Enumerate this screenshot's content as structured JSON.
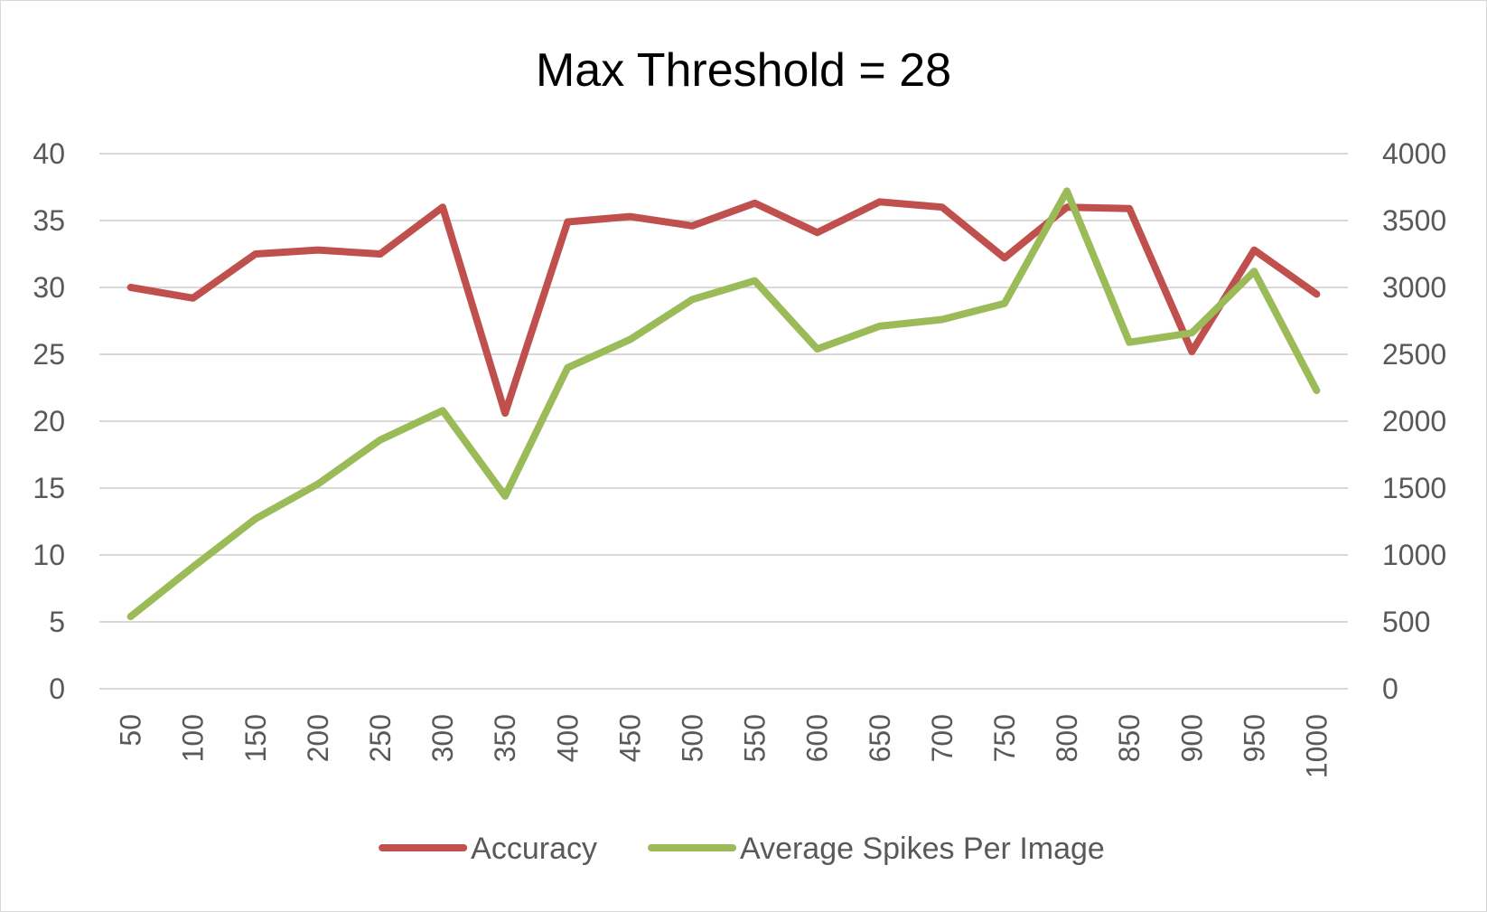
{
  "chart_data": {
    "type": "line",
    "title": "Max Threshold = 28",
    "categories": [
      "50",
      "100",
      "150",
      "200",
      "250",
      "300",
      "350",
      "400",
      "450",
      "500",
      "550",
      "600",
      "650",
      "700",
      "750",
      "800",
      "850",
      "900",
      "950",
      "1000"
    ],
    "y_left": {
      "min": 0,
      "max": 40,
      "ticks": [
        "0",
        "5",
        "10",
        "15",
        "20",
        "25",
        "30",
        "35",
        "40"
      ]
    },
    "y_right": {
      "min": 0,
      "max": 4000,
      "ticks": [
        "0",
        "500",
        "1000",
        "1500",
        "2000",
        "2500",
        "3000",
        "3500",
        "4000"
      ]
    },
    "grid": true,
    "legend_position": "bottom",
    "series": [
      {
        "name": "Accuracy",
        "axis": "left",
        "color": "#c0504d",
        "values": [
          30.0,
          29.2,
          32.5,
          32.8,
          32.5,
          36.0,
          20.6,
          34.9,
          35.3,
          34.6,
          36.3,
          34.1,
          36.4,
          36.0,
          32.2,
          36.0,
          35.9,
          25.2,
          32.8,
          29.5
        ]
      },
      {
        "name": "Average Spikes Per Image",
        "axis": "right",
        "color": "#9bbb59",
        "values": [
          540,
          910,
          1270,
          1530,
          1860,
          2080,
          1440,
          2400,
          2610,
          2910,
          3050,
          2540,
          2710,
          2760,
          2880,
          3720,
          2590,
          2660,
          3120,
          2230
        ]
      }
    ]
  }
}
